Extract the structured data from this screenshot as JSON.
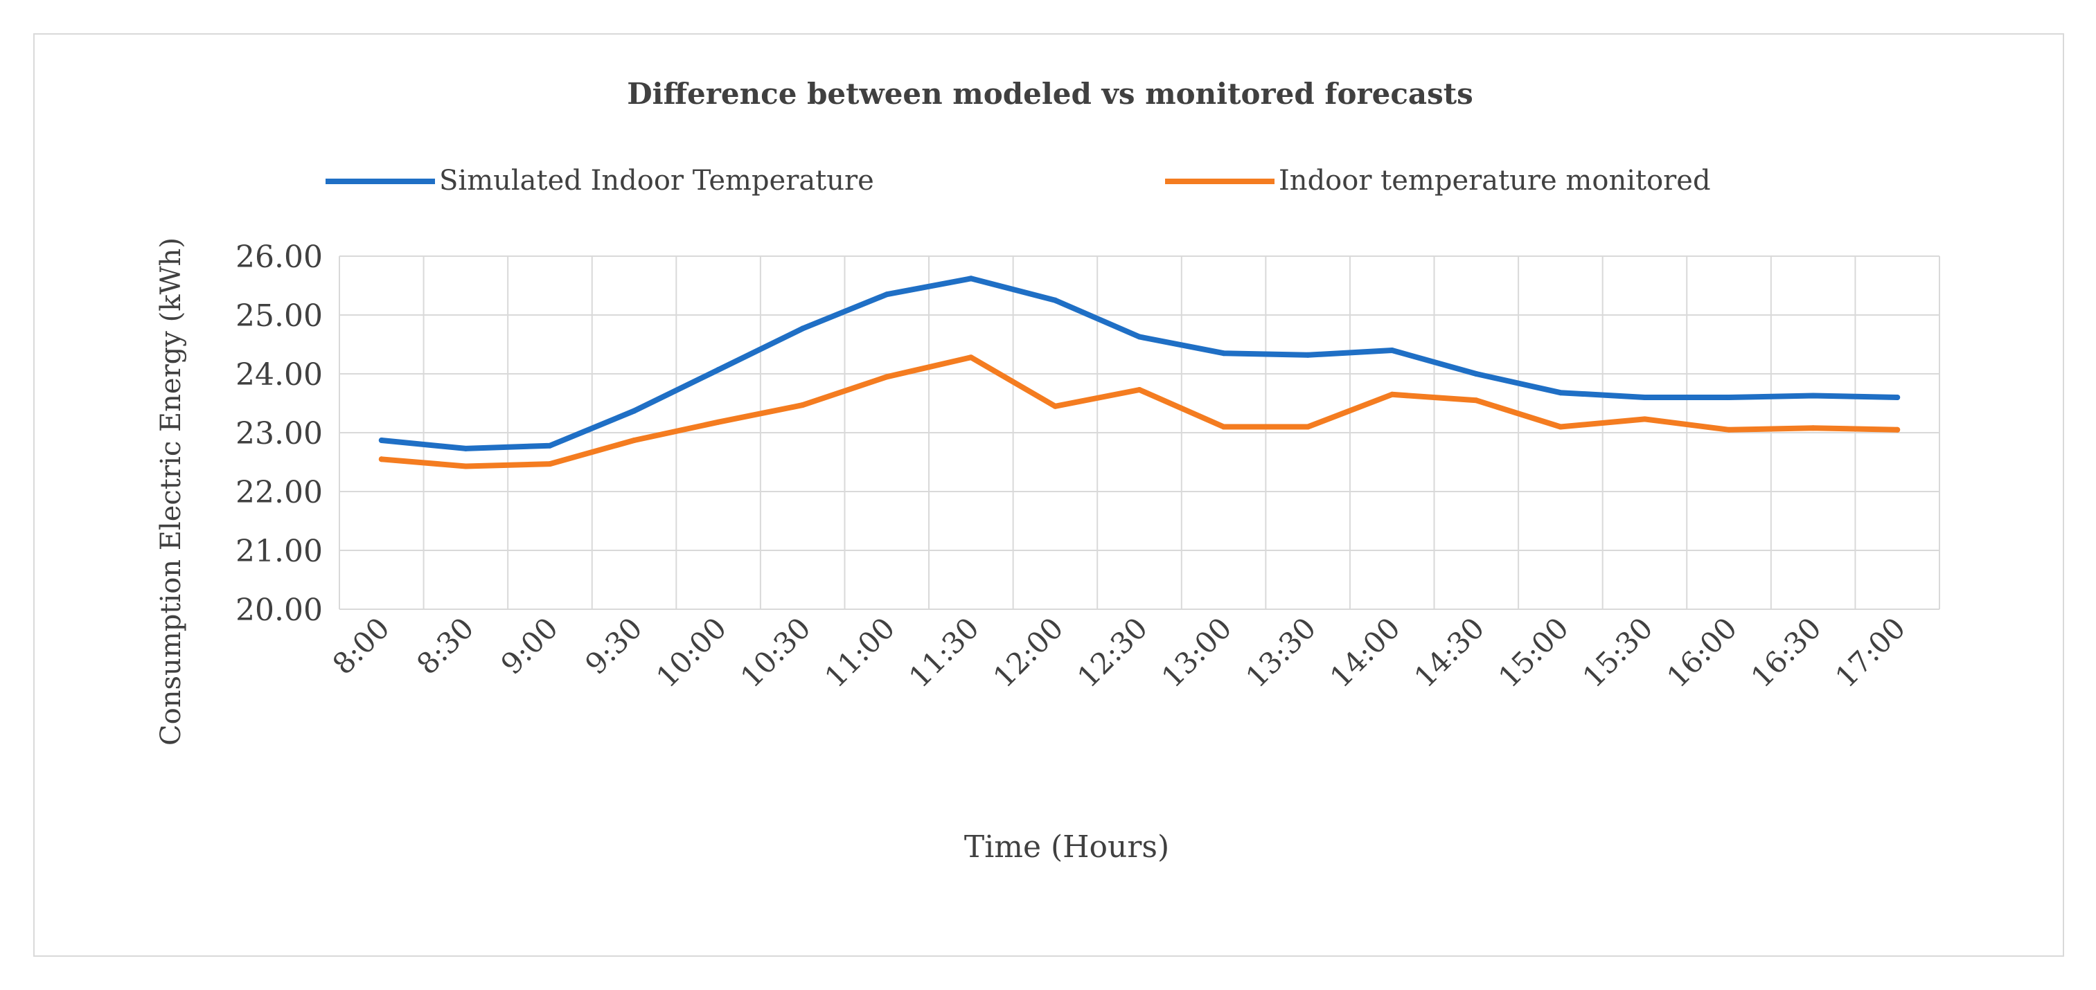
{
  "chart_data": {
    "type": "line",
    "title": "Difference between modeled vs monitored forecasts",
    "xlabel": "Time (Hours)",
    "ylabel": "Consumption Electric Energy (kWh)",
    "categories": [
      "8:00",
      "8:30",
      "9:00",
      "9:30",
      "10:00",
      "10:30",
      "11:00",
      "11:30",
      "12:00",
      "12:30",
      "13:00",
      "13:30",
      "14:00",
      "14:30",
      "15:00",
      "15:30",
      "16:00",
      "16:30",
      "17:00"
    ],
    "ylim": [
      20,
      26
    ],
    "yticks": [
      "20.00",
      "21.00",
      "22.00",
      "23.00",
      "24.00",
      "25.00",
      "26.00"
    ],
    "grid": true,
    "legend_position": "top",
    "series": [
      {
        "name": "Simulated Indoor Temperature",
        "color": "#1f6fc5",
        "values": [
          22.87,
          22.73,
          22.78,
          23.37,
          24.07,
          24.77,
          25.35,
          25.62,
          25.25,
          24.63,
          24.35,
          24.32,
          24.4,
          24.0,
          23.68,
          23.6,
          23.6,
          23.63,
          23.6
        ]
      },
      {
        "name": "Indoor temperature monitored",
        "color": "#f47c20",
        "values": [
          22.55,
          22.43,
          22.47,
          22.87,
          23.18,
          23.47,
          23.95,
          24.28,
          23.45,
          23.73,
          23.1,
          23.1,
          23.65,
          23.55,
          23.1,
          23.23,
          23.05,
          23.08,
          23.05
        ]
      }
    ]
  }
}
